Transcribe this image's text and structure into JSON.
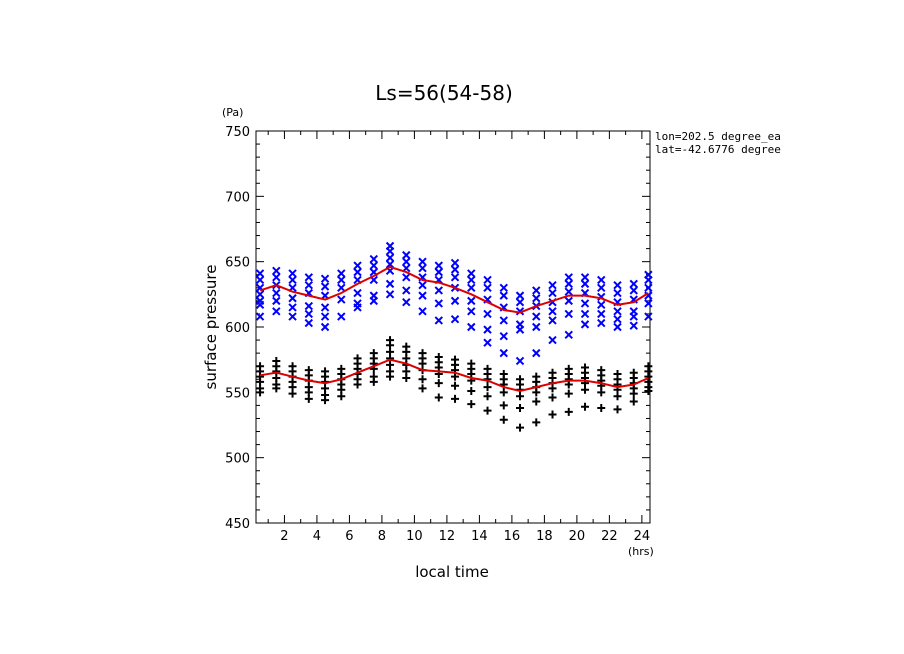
{
  "chart_data": {
    "type": "scatter",
    "title": "Ls=56(54-58)",
    "xlabel": "local time",
    "ylabel": "surface pressure",
    "x_unit": "(hrs)",
    "y_unit": "(Pa)",
    "xlim": [
      0.25,
      24.5
    ],
    "ylim": [
      450,
      750
    ],
    "x_ticks": [
      2,
      4,
      6,
      8,
      10,
      12,
      14,
      16,
      18,
      20,
      22,
      24
    ],
    "y_ticks": [
      450,
      500,
      550,
      600,
      650,
      700,
      750
    ],
    "annotations": [
      "lon=202.5 degree_ea",
      "lat=-42.6776 degree"
    ],
    "grid": false,
    "colors": {
      "series_x": "#0000ff",
      "series_plus": "#000000",
      "mean_line": "#dd0000"
    },
    "series": [
      {
        "marker": "x",
        "x": [
          0.5,
          0.5,
          0.5,
          0.5,
          0.5,
          0.5,
          0.5,
          1.5,
          1.5,
          1.5,
          1.5,
          1.5,
          1.5,
          2.5,
          2.5,
          2.5,
          2.5,
          2.5,
          2.5,
          3.5,
          3.5,
          3.5,
          3.5,
          3.5,
          3.5,
          4.5,
          4.5,
          4.5,
          4.5,
          4.5,
          4.5,
          5.5,
          5.5,
          5.5,
          5.5,
          5.5,
          6.5,
          6.5,
          6.5,
          6.5,
          6.5,
          6.5,
          7.5,
          7.5,
          7.5,
          7.5,
          7.5,
          7.5,
          8.5,
          8.5,
          8.5,
          8.5,
          8.5,
          8.5,
          8.5,
          9.5,
          9.5,
          9.5,
          9.5,
          9.5,
          9.5,
          10.5,
          10.5,
          10.5,
          10.5,
          10.5,
          10.5,
          11.5,
          11.5,
          11.5,
          11.5,
          11.5,
          11.5,
          12.5,
          12.5,
          12.5,
          12.5,
          12.5,
          12.5,
          13.5,
          13.5,
          13.5,
          13.5,
          13.5,
          13.5,
          14.5,
          14.5,
          14.5,
          14.5,
          14.5,
          14.5,
          15.5,
          15.5,
          15.5,
          15.5,
          15.5,
          15.5,
          16.5,
          16.5,
          16.5,
          16.5,
          16.5,
          16.5,
          17.5,
          17.5,
          17.5,
          17.5,
          17.5,
          17.5,
          18.5,
          18.5,
          18.5,
          18.5,
          18.5,
          18.5,
          19.5,
          19.5,
          19.5,
          19.5,
          19.5,
          19.5,
          20.5,
          20.5,
          20.5,
          20.5,
          20.5,
          20.5,
          21.5,
          21.5,
          21.5,
          21.5,
          21.5,
          21.5,
          22.5,
          22.5,
          22.5,
          22.5,
          22.5,
          22.5,
          23.5,
          23.5,
          23.5,
          23.5,
          23.5,
          23.5,
          24.4,
          24.4,
          24.4,
          24.4,
          24.4,
          24.4
        ],
        "y": [
          641,
          636,
          630,
          625,
          620,
          617,
          608,
          643,
          638,
          632,
          626,
          620,
          612,
          641,
          636,
          630,
          622,
          615,
          608,
          638,
          632,
          626,
          616,
          610,
          603,
          637,
          631,
          624,
          615,
          608,
          600,
          641,
          636,
          630,
          621,
          608,
          647,
          642,
          636,
          626,
          618,
          615,
          652,
          647,
          642,
          636,
          624,
          620,
          662,
          658,
          653,
          648,
          643,
          633,
          625,
          655,
          650,
          645,
          638,
          628,
          619,
          650,
          645,
          638,
          632,
          624,
          612,
          647,
          642,
          636,
          628,
          618,
          605,
          649,
          644,
          638,
          630,
          620,
          606,
          641,
          636,
          630,
          620,
          612,
          600,
          636,
          630,
          621,
          610,
          598,
          588,
          630,
          624,
          615,
          605,
          593,
          580,
          624,
          619,
          612,
          602,
          598,
          574,
          628,
          622,
          616,
          608,
          600,
          580,
          632,
          626,
          619,
          612,
          605,
          590,
          638,
          633,
          627,
          620,
          610,
          594,
          638,
          633,
          626,
          618,
          610,
          602,
          636,
          630,
          623,
          617,
          610,
          603,
          632,
          626,
          619,
          612,
          606,
          600,
          633,
          628,
          621,
          612,
          608,
          601,
          640,
          636,
          630,
          624,
          618,
          608
        ]
      },
      {
        "marker": "+",
        "x": [
          0.5,
          0.5,
          0.5,
          0.5,
          0.5,
          0.5,
          1.5,
          1.5,
          1.5,
          1.5,
          1.5,
          1.5,
          2.5,
          2.5,
          2.5,
          2.5,
          2.5,
          2.5,
          3.5,
          3.5,
          3.5,
          3.5,
          3.5,
          3.5,
          4.5,
          4.5,
          4.5,
          4.5,
          4.5,
          4.5,
          5.5,
          5.5,
          5.5,
          5.5,
          5.5,
          5.5,
          6.5,
          6.5,
          6.5,
          6.5,
          6.5,
          6.5,
          7.5,
          7.5,
          7.5,
          7.5,
          7.5,
          7.5,
          8.5,
          8.5,
          8.5,
          8.5,
          8.5,
          8.5,
          8.5,
          9.5,
          9.5,
          9.5,
          9.5,
          9.5,
          9.5,
          10.5,
          10.5,
          10.5,
          10.5,
          10.5,
          10.5,
          11.5,
          11.5,
          11.5,
          11.5,
          11.5,
          11.5,
          12.5,
          12.5,
          12.5,
          12.5,
          12.5,
          12.5,
          13.5,
          13.5,
          13.5,
          13.5,
          13.5,
          13.5,
          14.5,
          14.5,
          14.5,
          14.5,
          14.5,
          14.5,
          15.5,
          15.5,
          15.5,
          15.5,
          15.5,
          15.5,
          16.5,
          16.5,
          16.5,
          16.5,
          16.5,
          16.5,
          17.5,
          17.5,
          17.5,
          17.5,
          17.5,
          17.5,
          18.5,
          18.5,
          18.5,
          18.5,
          18.5,
          18.5,
          19.5,
          19.5,
          19.5,
          19.5,
          19.5,
          19.5,
          20.5,
          20.5,
          20.5,
          20.5,
          20.5,
          20.5,
          21.5,
          21.5,
          21.5,
          21.5,
          21.5,
          21.5,
          22.5,
          22.5,
          22.5,
          22.5,
          22.5,
          22.5,
          23.5,
          23.5,
          23.5,
          23.5,
          23.5,
          23.5,
          24.4,
          24.4,
          24.4,
          24.4,
          24.4,
          24.4
        ],
        "y": [
          570,
          566,
          562,
          558,
          553,
          550,
          574,
          570,
          566,
          561,
          556,
          553,
          570,
          566,
          562,
          558,
          554,
          549,
          567,
          563,
          559,
          554,
          550,
          545,
          566,
          562,
          558,
          553,
          548,
          544,
          568,
          564,
          560,
          556,
          552,
          547,
          576,
          572,
          568,
          564,
          560,
          556,
          580,
          576,
          572,
          568,
          562,
          558,
          590,
          586,
          581,
          576,
          571,
          566,
          562,
          585,
          581,
          576,
          571,
          566,
          561,
          580,
          576,
          572,
          567,
          560,
          553,
          577,
          573,
          569,
          564,
          557,
          546,
          575,
          571,
          567,
          562,
          555,
          545,
          572,
          568,
          564,
          559,
          551,
          541,
          568,
          564,
          560,
          554,
          547,
          536,
          564,
          560,
          556,
          550,
          540,
          529,
          560,
          556,
          552,
          547,
          538,
          523,
          562,
          558,
          554,
          550,
          543,
          527,
          565,
          561,
          557,
          553,
          546,
          533,
          568,
          564,
          560,
          556,
          549,
          535,
          569,
          565,
          561,
          557,
          552,
          539,
          567,
          563,
          559,
          555,
          550,
          538,
          564,
          560,
          556,
          552,
          547,
          537,
          565,
          561,
          557,
          553,
          549,
          543,
          570,
          566,
          562,
          558,
          554,
          551
        ]
      }
    ],
    "mean_lines": [
      {
        "x": [
          0.5,
          1.5,
          2.5,
          3.5,
          4.5,
          5.5,
          6.5,
          7.5,
          8.5,
          9.5,
          10.5,
          11.5,
          12.5,
          13.5,
          14.5,
          15.5,
          16.5,
          17.5,
          18.5,
          19.5,
          20.5,
          21.5,
          22.5,
          23.5,
          24.4
        ],
        "y": [
          628,
          632,
          627,
          624,
          621,
          626,
          633,
          639,
          646,
          642,
          636,
          634,
          630,
          625,
          619,
          613,
          611,
          616,
          620,
          624,
          624,
          622,
          617,
          619,
          626
        ]
      },
      {
        "x": [
          0.5,
          1.5,
          2.5,
          3.5,
          4.5,
          5.5,
          6.5,
          7.5,
          8.5,
          9.5,
          10.5,
          11.5,
          12.5,
          13.5,
          14.5,
          15.5,
          16.5,
          17.5,
          18.5,
          19.5,
          20.5,
          21.5,
          22.5,
          23.5,
          24.4
        ],
        "y": [
          563,
          565,
          562,
          559,
          557,
          560,
          565,
          570,
          575,
          572,
          567,
          566,
          565,
          561,
          559,
          554,
          551,
          554,
          557,
          559,
          559,
          557,
          554,
          556,
          561
        ]
      }
    ]
  }
}
